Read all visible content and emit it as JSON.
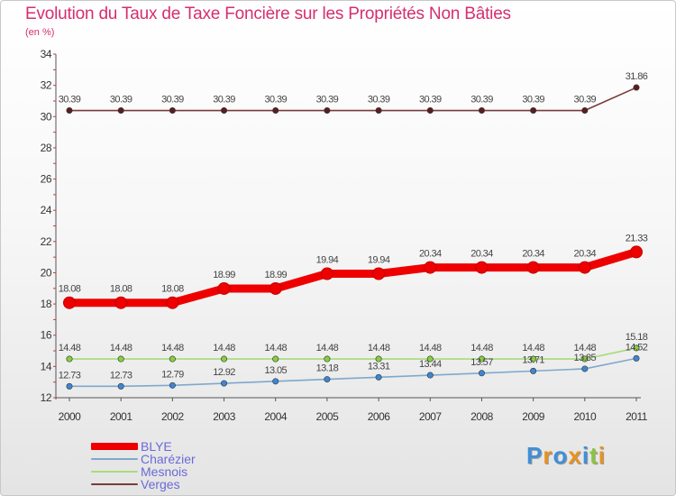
{
  "title": "Evolution du Taux de Taxe Foncière sur les Propriétés Non Bâties",
  "unit_label": "(en %)",
  "brand": {
    "text": "Proxiti",
    "letters": [
      {
        "ch": "P",
        "color": "#3f8fd8"
      },
      {
        "ch": "r",
        "color": "#e8921e"
      },
      {
        "ch": "o",
        "color": "#3f8fd8"
      },
      {
        "ch": "x",
        "color": "#e8921e"
      },
      {
        "ch": "i",
        "color": "#3f8fd8"
      },
      {
        "ch": "t",
        "color": "#8bc43f"
      },
      {
        "ch": "i",
        "color": "#e8921e"
      }
    ]
  },
  "chart_data": {
    "type": "line",
    "title": "Evolution du Taux de Taxe Foncière sur les Propriétés Non Bâties",
    "ylabel": "(en %)",
    "xlabel": "",
    "ylim": [
      12,
      34
    ],
    "yticks": [
      12,
      14,
      16,
      18,
      20,
      22,
      24,
      26,
      28,
      30,
      32,
      34
    ],
    "categories": [
      "2000",
      "2001",
      "2002",
      "2003",
      "2004",
      "2005",
      "2006",
      "2007",
      "2008",
      "2009",
      "2010",
      "2011"
    ],
    "series": [
      {
        "name": "BLYE",
        "color": "#ee0000",
        "emphasis": true,
        "values": [
          18.08,
          18.08,
          18.08,
          18.99,
          18.99,
          19.94,
          19.94,
          20.34,
          20.34,
          20.34,
          20.34,
          21.33
        ],
        "labels": [
          "18.08",
          "18.08",
          "18.08",
          "18.99",
          "18.99",
          "19.94",
          "19.94",
          "20.34",
          "20.34",
          "20.34",
          "20.34",
          "21.33"
        ]
      },
      {
        "name": "Charézier",
        "color": "#7fa8cc",
        "marker_color": "#3d86d2",
        "values": [
          12.73,
          12.73,
          12.79,
          12.92,
          13.05,
          13.18,
          13.31,
          13.44,
          13.57,
          13.71,
          13.85,
          14.52
        ],
        "labels": [
          "12.73",
          "12.73",
          "12.79",
          "12.92",
          "13.05",
          "13.18",
          "13.31",
          "13.44",
          "13.57",
          "13.71",
          "13.85",
          "14.52"
        ]
      },
      {
        "name": "Mesnois",
        "color": "#a8dc7c",
        "marker_color": "#86cf3e",
        "values": [
          14.48,
          14.48,
          14.48,
          14.48,
          14.48,
          14.48,
          14.48,
          14.48,
          14.48,
          14.48,
          14.48,
          15.18
        ],
        "labels": [
          "14.48",
          "14.48",
          "14.48",
          "14.48",
          "14.48",
          "14.48",
          "14.48",
          "14.48",
          "14.48",
          "14.48",
          "14.48",
          "15.18"
        ]
      },
      {
        "name": "Verges",
        "color": "#7a3a3a",
        "marker_color": "#5a1e1e",
        "values": [
          30.39,
          30.39,
          30.39,
          30.39,
          30.39,
          30.39,
          30.39,
          30.39,
          30.39,
          30.39,
          30.39,
          31.86
        ],
        "labels": [
          "30.39",
          "30.39",
          "30.39",
          "30.39",
          "30.39",
          "30.39",
          "30.39",
          "30.39",
          "30.39",
          "30.39",
          "30.39",
          "31.86"
        ]
      }
    ],
    "legend": [
      "BLYE",
      "Charézier",
      "Mesnois",
      "Verges"
    ],
    "legend_position": "bottom-left"
  }
}
